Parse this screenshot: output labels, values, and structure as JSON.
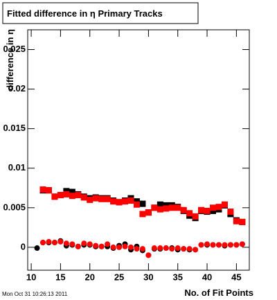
{
  "chart_data": {
    "type": "scatter",
    "title": "Fitted difference in  η Primary Tracks",
    "ylabel": "difference in η",
    "xlabel": "No. of Fit Points",
    "timestamp": "Mon Oct 31 10:26:13 2011",
    "xlim": [
      9.4,
      47.2
    ],
    "ylim": [
      -0.0029,
      0.0275
    ],
    "xticks": [
      10,
      15,
      20,
      25,
      30,
      35,
      40,
      45
    ],
    "yticks": [
      0,
      0.005,
      0.01,
      0.015,
      0.02,
      0.025
    ],
    "series": [
      {
        "marker": "square",
        "color": "#000000",
        "x": [
          12,
          13,
          14,
          15,
          16,
          17,
          18,
          19,
          20,
          21,
          22,
          23,
          24,
          25,
          26,
          27,
          28,
          29,
          30,
          31,
          32,
          33,
          34,
          35,
          36,
          37,
          38,
          39,
          40,
          41,
          42,
          43,
          44,
          45,
          46
        ],
        "values": [
          0.0072,
          0.0072,
          0.0064,
          0.0066,
          0.0071,
          0.007,
          0.0067,
          0.0064,
          0.0062,
          0.0063,
          0.0062,
          0.0062,
          0.0059,
          0.0057,
          0.0059,
          0.0062,
          0.0058,
          0.0055,
          0.0044,
          0.005,
          0.0054,
          0.0053,
          0.0053,
          0.0051,
          0.0046,
          0.004,
          0.0037,
          0.0046,
          0.0045,
          0.0046,
          0.0048,
          0.0053,
          0.0042,
          0.0034,
          0.0032
        ]
      },
      {
        "marker": "square",
        "color": "#ff0000",
        "x": [
          12,
          13,
          14,
          15,
          16,
          17,
          18,
          19,
          20,
          21,
          22,
          23,
          24,
          25,
          26,
          27,
          28,
          29,
          30,
          31,
          32,
          33,
          34,
          35,
          36,
          37,
          38,
          39,
          40,
          41,
          42,
          43,
          44,
          45,
          46
        ],
        "values": [
          0.0073,
          0.0072,
          0.0064,
          0.0066,
          0.0067,
          0.0065,
          0.0066,
          0.0063,
          0.006,
          0.0062,
          0.0061,
          0.0061,
          0.0058,
          0.0057,
          0.0058,
          0.0059,
          0.0054,
          0.0042,
          0.0044,
          0.005,
          0.0048,
          0.0049,
          0.005,
          0.005,
          0.0047,
          0.0043,
          0.0039,
          0.0047,
          0.0046,
          0.005,
          0.0051,
          0.0054,
          0.0045,
          0.0033,
          0.0032
        ]
      },
      {
        "marker": "circle",
        "color": "#000000",
        "x": [
          11,
          12,
          13,
          14,
          15,
          16,
          17,
          18,
          19,
          20,
          21,
          22,
          23,
          24,
          25,
          26,
          27,
          28,
          29,
          30,
          31,
          32,
          33,
          34,
          35,
          36,
          37,
          38,
          39,
          40,
          41,
          42,
          43,
          44,
          45,
          46
        ],
        "values": [
          -0.0001,
          0.0006,
          0.0006,
          0.0006,
          0.0008,
          0.0002,
          0.0003,
          0.0001,
          0.0003,
          0.0003,
          0.0001,
          0.0001,
          0.0001,
          -0.0001,
          0.0002,
          0.0004,
          -0.0003,
          0.0001,
          -0.0004,
          -0.001,
          -0.0002,
          -0.0002,
          -0.0001,
          -0.0001,
          -0.0003,
          -0.0002,
          -0.0003,
          -0.0003,
          0.0003,
          0.0003,
          0.0003,
          0.0003,
          0.0002,
          0.0003,
          0.0003,
          0.0004
        ]
      },
      {
        "marker": "circle",
        "color": "#ff0000",
        "x": [
          12,
          13,
          14,
          15,
          16,
          17,
          18,
          19,
          20,
          21,
          22,
          23,
          24,
          25,
          26,
          27,
          28,
          29,
          30,
          31,
          32,
          33,
          34,
          35,
          36,
          37,
          38,
          39,
          40,
          41,
          42,
          43,
          44,
          45,
          46
        ],
        "values": [
          0.0006,
          0.0007,
          0.0006,
          0.0007,
          0.0005,
          0.0004,
          0.0001,
          0.0005,
          0.0004,
          0.0002,
          0.0001,
          0.0004,
          0.0,
          0.0,
          0.0001,
          0.0,
          -0.0002,
          -0.0002,
          -0.001,
          -0.0001,
          -0.0001,
          -0.0001,
          -0.0002,
          -0.0001,
          -0.0002,
          -0.0002,
          -0.0003,
          0.0003,
          0.0004,
          0.0003,
          0.0003,
          0.0003,
          0.0003,
          0.0003,
          0.0004
        ]
      }
    ]
  }
}
